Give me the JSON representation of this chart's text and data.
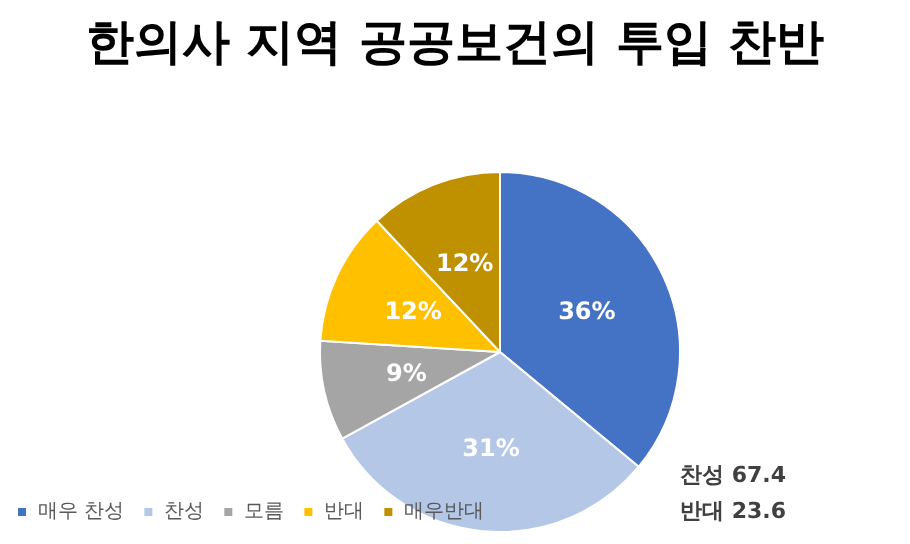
{
  "chart_data": {
    "type": "pie",
    "title": "한의사 지역 공공보건의 투입 찬반",
    "categories": [
      "매우 찬성",
      "찬성",
      "모름",
      "반대",
      "매우반대"
    ],
    "values": [
      36,
      31,
      9,
      12,
      12
    ],
    "value_labels": [
      "36%",
      "31%",
      "9%",
      "12%",
      "12%"
    ],
    "colors": [
      "#4472c4",
      "#b4c7e7",
      "#a5a5a5",
      "#ffc000",
      "#bf9000"
    ],
    "legend": "bottom left",
    "annotations": [
      "찬성 67.4",
      "반대 23.6"
    ]
  }
}
